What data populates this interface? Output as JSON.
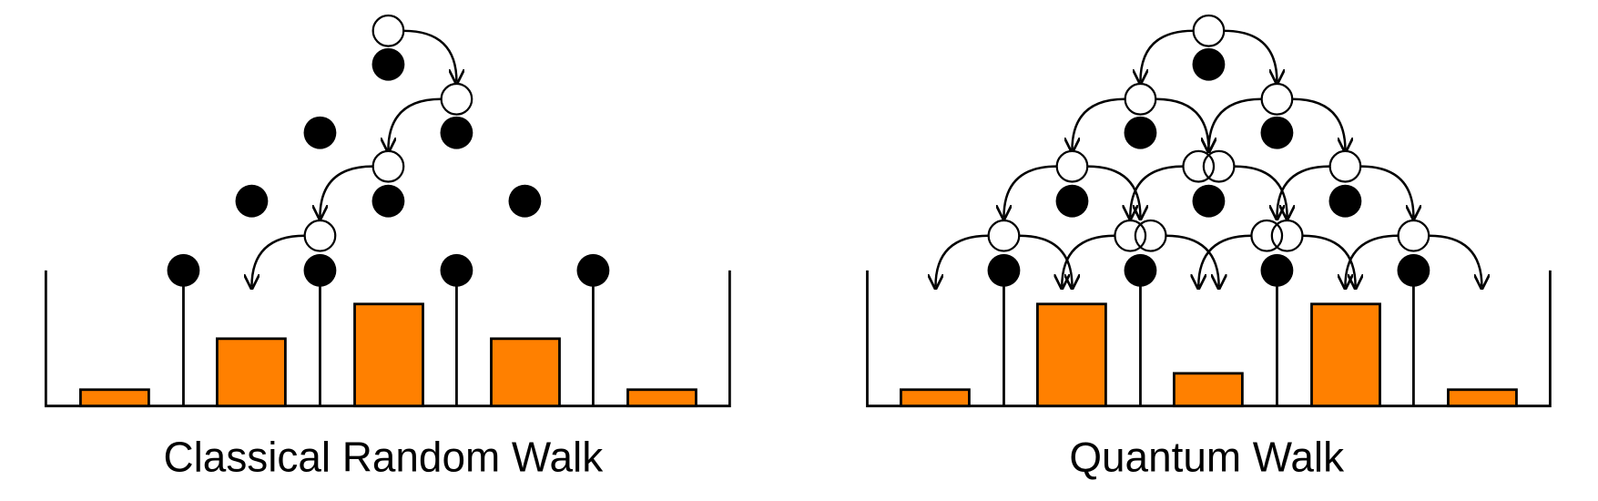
{
  "panels": [
    {
      "title": "Classical Random Walk"
    },
    {
      "title": "Quantum Walk"
    }
  ]
}
